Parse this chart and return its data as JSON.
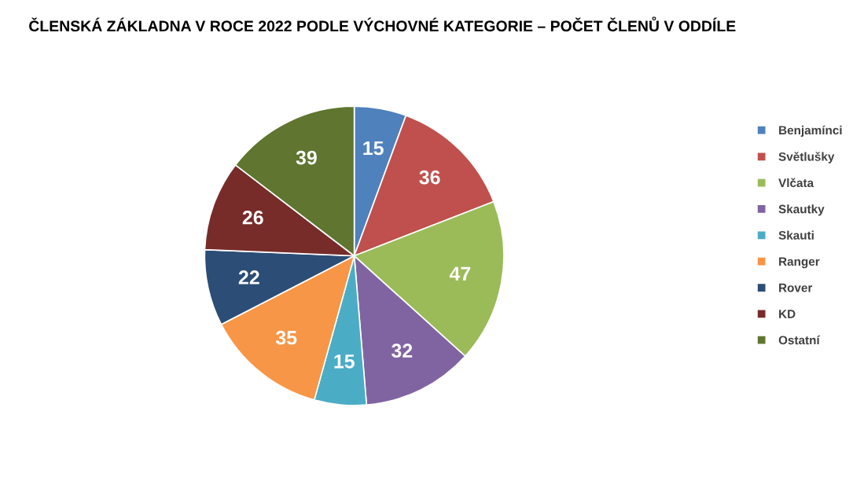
{
  "chart_data": {
    "type": "pie",
    "title": "ČLENSKÁ ZÁKLADNA V ROCE 2022 PODLE VÝCHOVNÉ KATEGORIE – POČET ČLENŮ V ODDÍLE",
    "categories": [
      "Benjamínci",
      "Světlušky",
      "Vlčata",
      "Skautky",
      "Skauti",
      "Ranger",
      "Rover",
      "KD",
      "Ostatní"
    ],
    "values": [
      15,
      36,
      47,
      32,
      15,
      35,
      22,
      26,
      39
    ],
    "colors": [
      "#4f81bd",
      "#c0504d",
      "#9bbb59",
      "#8064a2",
      "#4bacc6",
      "#f79646",
      "#2c4d75",
      "#772c2a",
      "#5f7530"
    ],
    "data_labels": true,
    "legend": "right"
  }
}
